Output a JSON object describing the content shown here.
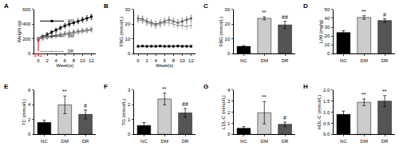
{
  "chart_data": [
    {
      "type": "line",
      "title": "A",
      "x_label": "Week(s)",
      "y_label": "Weight (g)",
      "x": [
        0,
        1,
        2,
        3,
        4,
        5,
        6,
        7,
        8,
        9,
        10,
        11,
        12
      ],
      "xlim": [
        -1,
        13
      ],
      "xticks": [
        0,
        2,
        4,
        6,
        8,
        10,
        12
      ],
      "ylim": [
        0,
        600
      ],
      "yticks": [
        0,
        200,
        400,
        600
      ],
      "legend": "upper left",
      "series": [
        {
          "name": "NC",
          "color": "#000000",
          "marker": "square",
          "values": [
            200,
            230,
            260,
            290,
            320,
            350,
            380,
            400,
            420,
            440,
            460,
            480,
            500
          ],
          "errors": [
            25,
            25,
            28,
            28,
            30,
            30,
            32,
            32,
            34,
            34,
            35,
            35,
            36
          ]
        },
        {
          "name": "DM",
          "color": "#555555",
          "marker": "circle",
          "values": [
            200,
            210,
            225,
            240,
            250,
            260,
            275,
            285,
            295,
            305,
            315,
            320,
            330
          ],
          "errors": [
            20,
            22,
            22,
            24,
            24,
            25,
            25,
            26,
            26,
            27,
            27,
            28,
            28
          ]
        },
        {
          "name": "DR",
          "color": "#999999",
          "marker": "triangle",
          "values": [
            200,
            205,
            215,
            225,
            235,
            245,
            255,
            265,
            280,
            290,
            300,
            310,
            320
          ],
          "errors": [
            20,
            22,
            22,
            24,
            24,
            25,
            25,
            26,
            26,
            27,
            27,
            28,
            28
          ]
        }
      ],
      "annotations": [
        {
          "x": 0,
          "y": 200,
          "text": "STZ",
          "color": "#e00000"
        }
      ]
    },
    {
      "type": "line",
      "title": "B",
      "x_label": "Week(s)",
      "y_label": "FBG (mmol/L)",
      "x": [
        0,
        1,
        2,
        3,
        4,
        5,
        6,
        7,
        8,
        9,
        10,
        11,
        12
      ],
      "xlim": [
        -1,
        13
      ],
      "xticks": [
        0,
        2,
        4,
        6,
        8,
        10,
        12
      ],
      "ylim": [
        0,
        30
      ],
      "yticks": [
        0,
        10,
        20,
        30
      ],
      "series": [
        {
          "color": "#000000",
          "marker": "square",
          "values": [
            5,
            5.2,
            5,
            5.1,
            5,
            5.2,
            5,
            5.1,
            5,
            5.2,
            5,
            5.1,
            5
          ],
          "errors": [
            0.5,
            0.5,
            0.5,
            0.5,
            0.5,
            0.5,
            0.5,
            0.5,
            0.5,
            0.5,
            0.5,
            0.5,
            0.5
          ]
        },
        {
          "color": "#555555",
          "marker": "circle",
          "values": [
            24,
            23.5,
            22,
            21,
            20,
            21,
            22,
            23,
            22,
            21,
            22,
            23,
            24
          ],
          "errors": [
            2,
            2,
            2,
            2,
            2,
            2,
            2,
            2,
            2,
            2,
            2,
            2,
            2
          ]
        },
        {
          "color": "#999999",
          "marker": "triangle",
          "values": [
            23,
            22.5,
            21,
            20,
            19,
            20,
            21,
            21,
            20,
            19,
            19,
            18.5,
            19
          ],
          "errors": [
            2,
            2,
            2,
            2,
            2,
            2,
            2,
            2,
            2,
            2,
            2,
            2,
            2
          ]
        }
      ]
    },
    {
      "type": "bar",
      "title": "C",
      "y_label": "FBG (mmol/L)",
      "categories": [
        "NC",
        "DM",
        "DR"
      ],
      "values": [
        5,
        24,
        19.5
      ],
      "errors": [
        0.5,
        1,
        2.5
      ],
      "colors": [
        "#000000",
        "#cccccc",
        "#555555"
      ],
      "ylim": [
        0,
        30
      ],
      "yticks": [
        0,
        10,
        20,
        30
      ],
      "annotations": [
        {
          "category": "DM",
          "text": "**"
        },
        {
          "category": "DR",
          "text": "##"
        }
      ]
    },
    {
      "type": "bar",
      "title": "D",
      "y_label": "L/W (mg/g)",
      "categories": [
        "NC",
        "DM",
        "DR"
      ],
      "values": [
        24,
        41,
        37.5
      ],
      "errors": [
        2,
        2,
        2
      ],
      "colors": [
        "#000000",
        "#cccccc",
        "#555555"
      ],
      "ylim": [
        0,
        50
      ],
      "yticks": [
        0,
        10,
        20,
        30,
        40,
        50
      ],
      "annotations": [
        {
          "category": "DM",
          "text": "**"
        },
        {
          "category": "DR",
          "text": "#"
        }
      ]
    },
    {
      "type": "bar",
      "title": "E",
      "y_label": "TC (mmol/L)",
      "categories": [
        "NC",
        "DM",
        "DR"
      ],
      "values": [
        1.6,
        4.0,
        2.7
      ],
      "errors": [
        0.3,
        1.2,
        0.6
      ],
      "colors": [
        "#000000",
        "#cccccc",
        "#555555"
      ],
      "ylim": [
        0,
        6
      ],
      "yticks": [
        0,
        2,
        4,
        6
      ],
      "annotations": [
        {
          "category": "DM",
          "text": "**"
        },
        {
          "category": "DR",
          "text": "#"
        }
      ]
    },
    {
      "type": "bar",
      "title": "F",
      "y_label": "TG (mmol/L)",
      "categories": [
        "NC",
        "DM",
        "DR"
      ],
      "values": [
        0.6,
        2.4,
        1.45
      ],
      "errors": [
        0.2,
        0.4,
        0.3
      ],
      "colors": [
        "#000000",
        "#cccccc",
        "#555555"
      ],
      "ylim": [
        0,
        3
      ],
      "yticks": [
        0,
        1,
        2,
        3
      ],
      "annotations": [
        {
          "category": "DM",
          "text": "**"
        },
        {
          "category": "DR",
          "text": "##"
        }
      ]
    },
    {
      "type": "bar",
      "title": "G",
      "y_label": "LDL-C (mmol/L)",
      "categories": [
        "NC",
        "DM",
        "DR"
      ],
      "values": [
        0.55,
        1.95,
        0.9
      ],
      "errors": [
        0.15,
        1.0,
        0.2
      ],
      "colors": [
        "#000000",
        "#cccccc",
        "#555555"
      ],
      "ylim": [
        0,
        4
      ],
      "yticks": [
        0,
        1,
        2,
        3,
        4
      ],
      "annotations": [
        {
          "category": "DM",
          "text": "**"
        },
        {
          "category": "DR",
          "text": "#"
        }
      ]
    },
    {
      "type": "bar",
      "title": "H",
      "y_label": "HDL-C (mmol/L)",
      "categories": [
        "NC",
        "DM",
        "DR"
      ],
      "values": [
        0.9,
        1.45,
        1.5
      ],
      "errors": [
        0.15,
        0.15,
        0.25
      ],
      "colors": [
        "#000000",
        "#cccccc",
        "#555555"
      ],
      "ylim": [
        0,
        2
      ],
      "yticks": [
        {
          "value": 0,
          "label": "0.0"
        },
        {
          "value": 0.5,
          "label": "0.5"
        },
        {
          "value": 1,
          "label": "1.0"
        },
        {
          "value": 1.5,
          "label": "1.5"
        },
        {
          "value": 2,
          "label": "2.0"
        }
      ],
      "annotations": [
        {
          "category": "DM",
          "text": "**"
        },
        {
          "category": "DR",
          "text": "**"
        }
      ]
    }
  ]
}
